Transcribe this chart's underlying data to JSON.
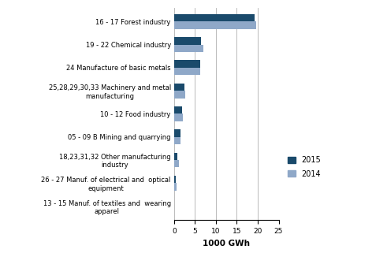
{
  "categories": [
    "13 - 15 Manuf. of textiles and  wearing\napparel",
    "26 - 27 Manuf. of electrical and  optical\nequipment",
    "18,23,31,32 Other manufacturing\nindustry",
    "05 - 09 B Mining and quarrying",
    "10 - 12 Food industry",
    "25,28,29,30,33 Machinery and metal\nmanufacturing",
    "24 Manufacture of basic metals",
    "19 - 22 Chemical industry",
    "16 - 17 Forest industry"
  ],
  "values_2015": [
    0.05,
    0.45,
    0.85,
    1.5,
    1.9,
    2.5,
    6.2,
    6.4,
    19.2
  ],
  "values_2014": [
    0.1,
    0.55,
    1.05,
    1.55,
    2.0,
    2.6,
    6.2,
    7.0,
    19.7
  ],
  "color_2015": "#1a4a6b",
  "color_2014": "#8fa8c8",
  "xlabel": "1000 GWh",
  "xlim": [
    0,
    25
  ],
  "xticks": [
    0,
    5,
    10,
    15,
    20,
    25
  ],
  "legend_labels": [
    "2015",
    "2014"
  ],
  "bar_height": 0.32,
  "grid_color": "#b0b0b0"
}
